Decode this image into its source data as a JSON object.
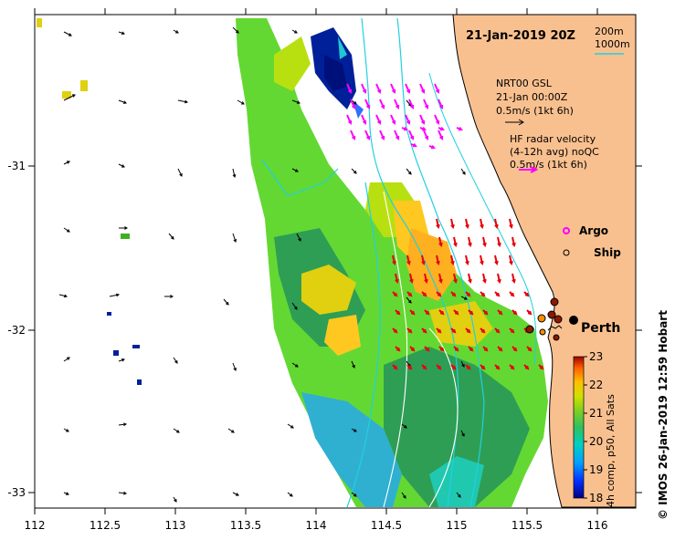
{
  "title": "21-Jan-2019 20Z",
  "scale_bar": {
    "label_200m": "200m",
    "label_1000m": "1000m"
  },
  "current_vectors": {
    "label": "NRT00 GSL",
    "date": "21-Jan 00:00Z",
    "scale": "0.5m/s (1kt 6h)"
  },
  "hf_radar": {
    "label": "HF radar velocity",
    "detail": "(4-12h avg) noQC",
    "scale": "0.5m/s (1kt 6h)"
  },
  "legend": {
    "argo": "Argo",
    "ship": "Ship"
  },
  "place": {
    "perth": "Perth"
  },
  "colorbar": {
    "title": "4h comp, p50, All Sats",
    "ticks": [
      "18",
      "19",
      "20",
      "21",
      "22",
      "23"
    ]
  },
  "footer": "© IMOS 26-Jan-2019 12:59 Hobart",
  "axes": {
    "x_ticks": [
      "112",
      "112.5",
      "113",
      "113.5",
      "114",
      "114.5",
      "115",
      "115.5",
      "116"
    ],
    "y_ticks": [
      "-31",
      "-32",
      "-33"
    ]
  },
  "colors": {
    "land": "#f9c08f",
    "arrow_hf": "#ff00ff",
    "arrow_red": "#e8000b",
    "isobath": "#20d0e0"
  }
}
